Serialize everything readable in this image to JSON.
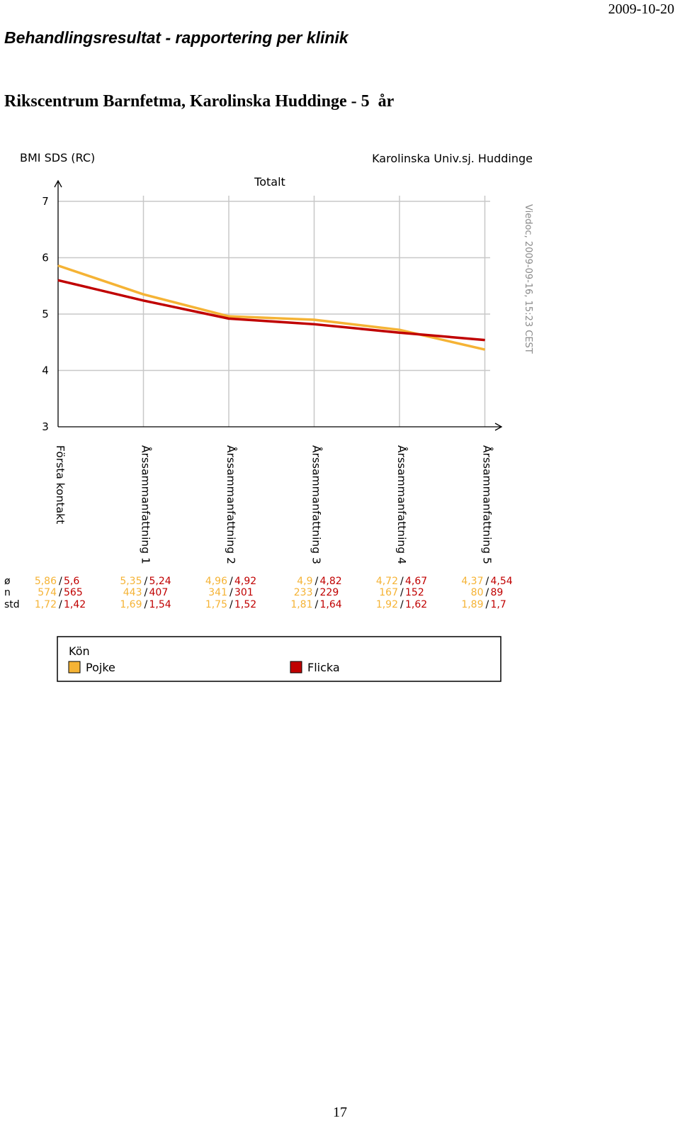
{
  "header": {
    "date": "2009-10-20",
    "title": "Behandlingsresultat - rapportering per klinik",
    "clinic": "Rikscentrum Barnfetma, Karolinska Huddinge - 5  år"
  },
  "page_number": "17",
  "colors": {
    "boys": "#f5b335",
    "girls": "#c00000",
    "grid": "#c8c8c8",
    "axis": "#000000"
  },
  "chart_data": {
    "type": "line",
    "title": "Totalt",
    "ylabel": "BMI SDS (RC)",
    "clinic_label": "Karolinska Univ.sj. Huddinge",
    "watermark": "Viedoc, 2009-09-16, 15:23 CEST",
    "ylim": [
      3,
      7
    ],
    "yticks": [
      "3",
      "4",
      "5",
      "6",
      "7"
    ],
    "grid": true,
    "categories": [
      "Första kontakt",
      "Årssammanfattning 1",
      "Årssammanfattning 2",
      "Årssammanfattning 3",
      "Årssammanfattning 4",
      "Årssammanfattning 5"
    ],
    "series": [
      {
        "name": "Pojke",
        "color": "#f5b335",
        "values": [
          5.86,
          5.35,
          4.96,
          4.9,
          4.72,
          4.37
        ],
        "mean_labels": [
          "5,86",
          "5,35",
          "4,96",
          "4,9",
          "4,72",
          "4,37"
        ],
        "n_labels": [
          "574",
          "443",
          "341",
          "233",
          "167",
          "80"
        ],
        "std_labels": [
          "1,72",
          "1,69",
          "1,75",
          "1,81",
          "1,92",
          "1,89"
        ]
      },
      {
        "name": "Flicka",
        "color": "#c00000",
        "values": [
          5.6,
          5.24,
          4.92,
          4.82,
          4.67,
          4.54
        ],
        "mean_labels": [
          "5,6",
          "5,24",
          "4,92",
          "4,82",
          "4,67",
          "4,54"
        ],
        "n_labels": [
          "565",
          "407",
          "301",
          "229",
          "152",
          "89"
        ],
        "std_labels": [
          "1,42",
          "1,54",
          "1,52",
          "1,64",
          "1,62",
          "1,7"
        ]
      }
    ],
    "stat_labels": {
      "mean": "ø",
      "n": "n",
      "std": "std"
    },
    "legend": {
      "title": "Kön",
      "position": "bottom"
    }
  }
}
